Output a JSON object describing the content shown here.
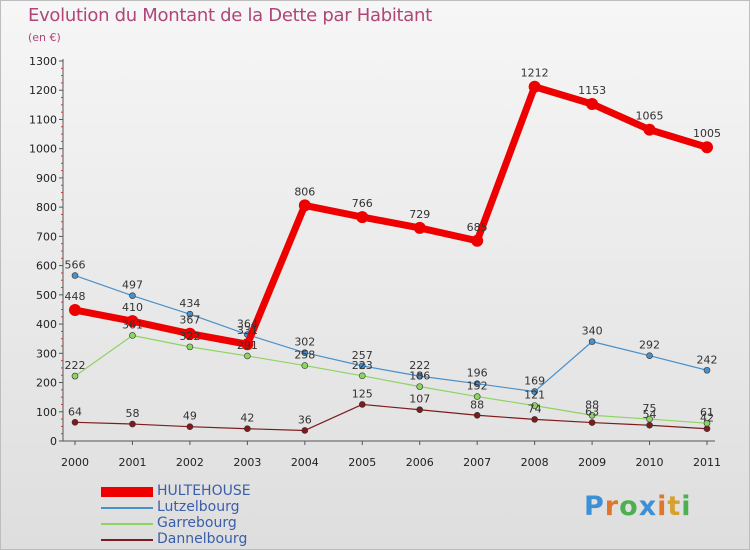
{
  "header": {
    "title": "Evolution du Montant de la Dette par Habitant",
    "unit": "(en €)"
  },
  "logo": {
    "text": "Proxiti",
    "colors": [
      "#3d8fd6",
      "#e0762c",
      "#4caf50",
      "#3d8fd6",
      "#e0762c",
      "#d6a12c",
      "#4caf50"
    ]
  },
  "chart_data": {
    "type": "line",
    "title": "Evolution du Montant de la Dette par Habitant",
    "subtitle": "(en €)",
    "x": [
      "2000",
      "2001",
      "2002",
      "2003",
      "2004",
      "2005",
      "2006",
      "2007",
      "2008",
      "2009",
      "2010",
      "2011"
    ],
    "ylim": [
      0,
      1300
    ],
    "yticks": [
      0,
      100,
      200,
      300,
      400,
      500,
      600,
      700,
      800,
      900,
      1000,
      1100,
      1200,
      1300
    ],
    "grid": false,
    "legend_position": "bottom-left",
    "series": [
      {
        "name": "HULTEHOUSE",
        "color": "#ee0000",
        "values": [
          448,
          410,
          367,
          331,
          806,
          766,
          729,
          685,
          1212,
          1153,
          1065,
          1005
        ],
        "labels": [
          "448",
          "410",
          "367",
          "331",
          "806",
          "766",
          "729",
          "685",
          "1212",
          "1153",
          "1065",
          "1005"
        ]
      },
      {
        "name": "Lutzelbourg",
        "color": "#4a90c8",
        "values": [
          566,
          497,
          434,
          364,
          302,
          257,
          222,
          196,
          169,
          340,
          292,
          242
        ],
        "labels": [
          "566",
          "497",
          "434",
          "364",
          "302",
          "257",
          "222",
          "196",
          "169",
          "340",
          "292",
          "242"
        ]
      },
      {
        "name": "Garrebourg",
        "color": "#8ed462",
        "values": [
          222,
          361,
          322,
          291,
          258,
          223,
          186,
          152,
          121,
          88,
          75,
          61
        ],
        "labels": [
          "222",
          "361",
          "322",
          "291",
          "258",
          "223",
          "186",
          "152",
          "121",
          "88",
          "75",
          "61"
        ]
      },
      {
        "name": "Dannelbourg",
        "color": "#7d1c1c",
        "values": [
          64,
          58,
          49,
          42,
          36,
          125,
          107,
          88,
          74,
          63,
          54,
          42
        ],
        "labels": [
          "64",
          "58",
          "49",
          "42",
          "36",
          "125",
          "107",
          "88",
          "74",
          "63",
          "54",
          "42"
        ]
      }
    ]
  }
}
